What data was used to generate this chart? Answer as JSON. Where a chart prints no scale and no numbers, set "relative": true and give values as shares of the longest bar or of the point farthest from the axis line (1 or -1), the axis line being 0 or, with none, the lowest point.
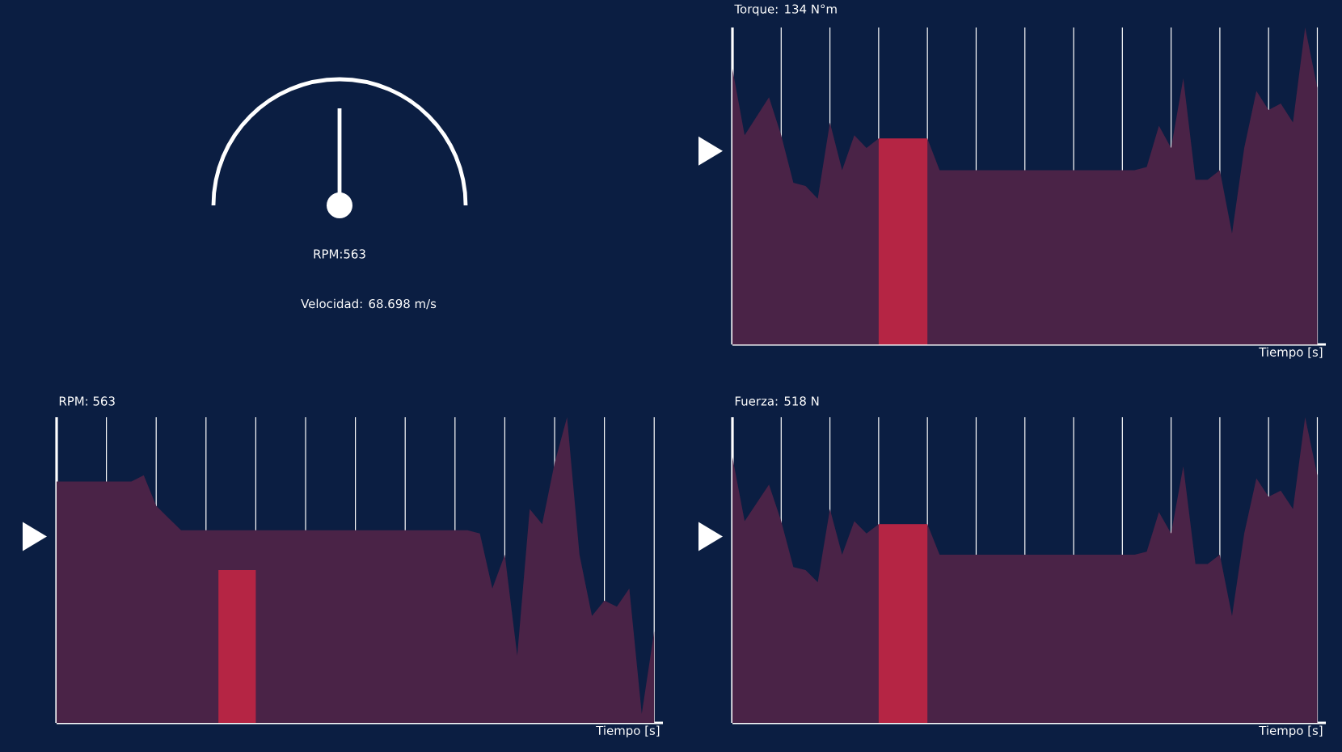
{
  "chart_data": [
    {
      "type": "other",
      "annotations": [
        "RPM:563",
        "Velocidad: 68.698 m/s"
      ]
    },
    {
      "type": "area",
      "relative": true,
      "title": "Torque: 134 N°m",
      "xlabel": "Tiempo [s]",
      "grid": "x",
      "categories": [
        null,
        null,
        null,
        null,
        null,
        null,
        null,
        null,
        null,
        null,
        null,
        null,
        null,
        null,
        null,
        null,
        null,
        null,
        null,
        null,
        null,
        null,
        null,
        null,
        null,
        null,
        null,
        null,
        null,
        null,
        null,
        null,
        null,
        null,
        null,
        null,
        null,
        null,
        null,
        null,
        null,
        null,
        null,
        null,
        null,
        null,
        null,
        null,
        null
      ],
      "series": [
        {
          "color": "#4a2347",
          "values": [
            0.87,
            0.66,
            0.72,
            0.78,
            0.66,
            0.51,
            0.5,
            0.46,
            0.7,
            0.55,
            0.66,
            0.62,
            0.65,
            null,
            null,
            null,
            0.65,
            0.55,
            0.55,
            0.55,
            0.55,
            0.55,
            0.55,
            0.55,
            0.55,
            0.55,
            0.55,
            0.55,
            0.55,
            0.55,
            0.55,
            0.55,
            0.55,
            0.55,
            0.56,
            0.69,
            0.62,
            0.84,
            0.52,
            0.52,
            0.55,
            0.35,
            0.62,
            0.8,
            0.74,
            0.76,
            0.7,
            1.0,
            0.81
          ]
        },
        {
          "color": "#b52544",
          "values": [
            null,
            null,
            null,
            null,
            null,
            null,
            null,
            null,
            null,
            null,
            null,
            null,
            0.65,
            0.65,
            0.65,
            0.65,
            0.65,
            null,
            null,
            null,
            null,
            null,
            null,
            null,
            null,
            null,
            null,
            null,
            null,
            null,
            null,
            null,
            null,
            null,
            null,
            null,
            null,
            null,
            null,
            null,
            null,
            null,
            null,
            null,
            null,
            null,
            null,
            null,
            null
          ]
        }
      ]
    },
    {
      "type": "area",
      "relative": true,
      "title": "RPM: 563",
      "xlabel": "Tiempo [s]",
      "grid": "x",
      "categories": [
        null,
        null,
        null,
        null,
        null,
        null,
        null,
        null,
        null,
        null,
        null,
        null,
        null,
        null,
        null,
        null,
        null,
        null,
        null,
        null,
        null,
        null,
        null,
        null,
        null,
        null,
        null,
        null,
        null,
        null,
        null,
        null,
        null,
        null,
        null,
        null,
        null,
        null,
        null,
        null,
        null,
        null,
        null,
        null,
        null,
        null,
        null,
        null,
        null
      ],
      "series": [
        {
          "color": "#4a2347",
          "values": [
            0.79,
            0.79,
            0.79,
            0.79,
            0.79,
            0.79,
            0.79,
            0.81,
            0.71,
            0.67,
            0.63,
            0.63,
            0.63,
            0.63,
            0.63,
            0.63,
            0.63,
            0.63,
            0.63,
            0.63,
            0.63,
            0.63,
            0.63,
            0.63,
            0.63,
            0.63,
            0.63,
            0.63,
            0.63,
            0.63,
            0.63,
            0.63,
            0.63,
            0.63,
            0.62,
            0.44,
            0.55,
            0.22,
            0.7,
            0.65,
            0.85,
            1.0,
            0.55,
            0.35,
            0.4,
            0.38,
            0.44,
            0.03,
            0.3
          ]
        },
        {
          "color": "#b52544",
          "values": [
            null,
            null,
            null,
            null,
            null,
            null,
            null,
            null,
            null,
            null,
            null,
            null,
            null,
            0.5,
            0.5,
            0.5,
            0.5,
            null,
            null,
            null,
            null,
            null,
            null,
            null,
            null,
            null,
            null,
            null,
            null,
            null,
            null,
            null,
            null,
            null,
            null,
            null,
            null,
            null,
            null,
            null,
            null,
            null,
            null,
            null,
            null,
            null,
            null,
            null,
            null
          ]
        }
      ]
    },
    {
      "type": "area",
      "relative": true,
      "title": "Fuerza: 518 N",
      "xlabel": "Tiempo [s]",
      "grid": "x",
      "categories": [
        null,
        null,
        null,
        null,
        null,
        null,
        null,
        null,
        null,
        null,
        null,
        null,
        null,
        null,
        null,
        null,
        null,
        null,
        null,
        null,
        null,
        null,
        null,
        null,
        null,
        null,
        null,
        null,
        null,
        null,
        null,
        null,
        null,
        null,
        null,
        null,
        null,
        null,
        null,
        null,
        null,
        null,
        null,
        null,
        null,
        null,
        null,
        null,
        null
      ],
      "series": [
        {
          "color": "#4a2347",
          "values": [
            0.87,
            0.66,
            0.72,
            0.78,
            0.66,
            0.51,
            0.5,
            0.46,
            0.7,
            0.55,
            0.66,
            0.62,
            0.65,
            null,
            null,
            null,
            0.65,
            0.55,
            0.55,
            0.55,
            0.55,
            0.55,
            0.55,
            0.55,
            0.55,
            0.55,
            0.55,
            0.55,
            0.55,
            0.55,
            0.55,
            0.55,
            0.55,
            0.55,
            0.56,
            0.69,
            0.62,
            0.84,
            0.52,
            0.52,
            0.55,
            0.35,
            0.62,
            0.8,
            0.74,
            0.76,
            0.7,
            1.0,
            0.81
          ]
        },
        {
          "color": "#b52544",
          "values": [
            null,
            null,
            null,
            null,
            null,
            null,
            null,
            null,
            null,
            null,
            null,
            null,
            0.65,
            0.65,
            0.65,
            0.65,
            0.65,
            null,
            null,
            null,
            null,
            null,
            null,
            null,
            null,
            null,
            null,
            null,
            null,
            null,
            null,
            null,
            null,
            null,
            null,
            null,
            null,
            null,
            null,
            null,
            null,
            null,
            null,
            null,
            null,
            null,
            null,
            null,
            null
          ]
        }
      ]
    }
  ]
}
